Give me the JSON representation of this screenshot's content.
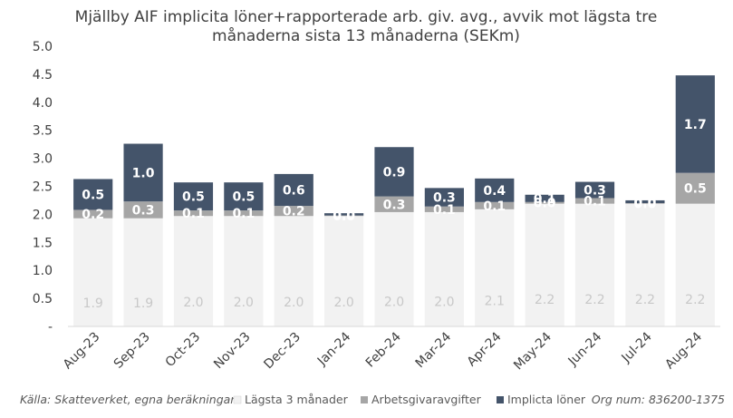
{
  "chart_data": {
    "type": "bar",
    "stacked": true,
    "title": [
      "Mjällby AIF implicita löner+rapporterade arb. giv. avg., avvik mot lägsta tre",
      "månaderna sista 13 månaderna (SEKm)"
    ],
    "categories": [
      "Aug-23",
      "Sep-23",
      "Oct-23",
      "Nov-23",
      "Dec-23",
      "Jan-24",
      "Feb-24",
      "Mar-24",
      "Apr-24",
      "May-24",
      "Jun-24",
      "Jul-24",
      "Aug-24"
    ],
    "series": [
      {
        "name": "Lägsta 3 månader",
        "color": "#f2f2f2",
        "values": [
          1.93,
          1.93,
          1.97,
          1.97,
          1.97,
          1.97,
          2.04,
          2.04,
          2.09,
          2.19,
          2.19,
          2.19,
          2.19
        ],
        "labels": [
          "1.9",
          "1.9",
          "2.0",
          "2.0",
          "2.0",
          "2.0",
          "2.0",
          "2.0",
          "2.1",
          "2.2",
          "2.2",
          "2.2",
          "2.2"
        ]
      },
      {
        "name": "Arbetsgivaravgifter",
        "color": "#a6a6a6",
        "values": [
          0.15,
          0.3,
          0.1,
          0.1,
          0.18,
          0.01,
          0.28,
          0.1,
          0.13,
          0.03,
          0.1,
          0.01,
          0.55
        ],
        "labels": [
          "0.2",
          "0.3",
          "0.1",
          "0.1",
          "0.2",
          "0.0",
          "0.3",
          "0.1",
          "0.1",
          "0.0",
          "0.1",
          "0.0",
          "0.5"
        ]
      },
      {
        "name": "Implicta löner",
        "color": "#44546a",
        "values": [
          0.55,
          1.03,
          0.5,
          0.5,
          0.57,
          0.04,
          0.88,
          0.33,
          0.42,
          0.13,
          0.29,
          0.05,
          1.74
        ],
        "labels": [
          "0.5",
          "1.0",
          "0.5",
          "0.5",
          "0.6",
          "0.0",
          "0.9",
          "0.3",
          "0.4",
          "0.1",
          "0.3",
          "0.0",
          "1.7"
        ]
      }
    ],
    "y_ticks": [
      "-",
      "0.5",
      "1.0",
      "1.5",
      "2.0",
      "2.5",
      "3.0",
      "3.5",
      "4.0",
      "4.5",
      "5.0"
    ],
    "ylim": [
      0,
      5
    ],
    "grid": false,
    "legend_position": "bottom"
  },
  "footer": {
    "source": "Källa: Skatteverket, egna beräkningar",
    "org": "Org num: 836200-1375"
  }
}
